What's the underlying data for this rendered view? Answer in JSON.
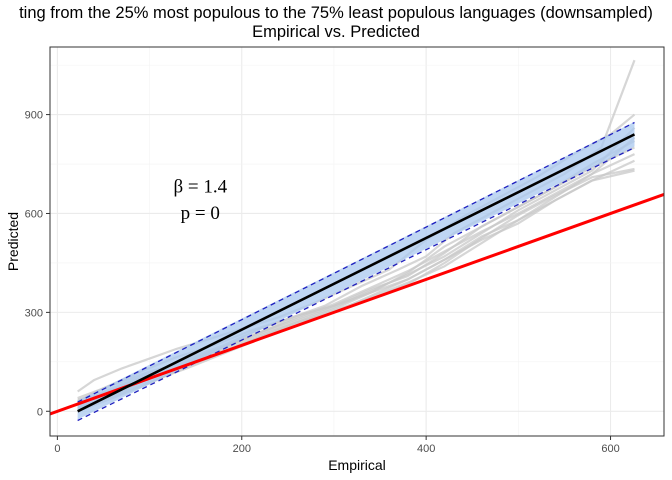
{
  "chart_data": {
    "type": "line",
    "title": "ting from the 25% most populous to the 75% least populous languages (downsampled)",
    "subtitle": "Empirical vs. Predicted",
    "xlabel": "Empirical",
    "ylabel": "Predicted",
    "xlim": [
      -8,
      658
    ],
    "ylim": [
      -75,
      1105
    ],
    "x_ticks": [
      0,
      200,
      400,
      600
    ],
    "y_ticks": [
      0,
      300,
      600,
      900
    ],
    "grid": true,
    "annotations": [
      "β = 1.4",
      "p = 0"
    ],
    "fit_line": {
      "name": "",
      "color": "#000000",
      "x": [
        22,
        626
      ],
      "y": [
        0,
        840
      ]
    },
    "confidence_band": {
      "fill": "#a9c8ef",
      "lower": [
        -25,
        803
      ],
      "upper": [
        32,
        878
      ]
    },
    "prediction_lines_dashed": {
      "color": "#1f1fbf",
      "lower": [
        -28,
        800
      ],
      "upper": [
        28,
        876
      ]
    },
    "identity_line": {
      "color": "#ff0000",
      "x": [
        -8,
        658
      ],
      "y": [
        -8,
        658
      ]
    },
    "series": [
      {
        "name": "",
        "x": [
          22,
          40,
          70,
          100,
          130,
          160,
          200,
          240,
          280,
          320,
          360,
          400,
          440,
          480,
          520,
          560,
          600,
          626
        ],
        "y": [
          60,
          95,
          130,
          160,
          190,
          215,
          250,
          285,
          330,
          380,
          430,
          520,
          590,
          650,
          710,
          780,
          840,
          900
        ]
      },
      {
        "name": "",
        "x": [
          22,
          50,
          90,
          130,
          170,
          210,
          250,
          290,
          330,
          370,
          400,
          430,
          470,
          510,
          550,
          590,
          626
        ],
        "y": [
          30,
          70,
          120,
          165,
          200,
          245,
          280,
          320,
          380,
          430,
          470,
          540,
          600,
          660,
          720,
          800,
          1065
        ]
      },
      {
        "name": "",
        "x": [
          22,
          60,
          100,
          140,
          180,
          220,
          260,
          300,
          340,
          380,
          420,
          460,
          500,
          540,
          580,
          626
        ],
        "y": [
          10,
          50,
          100,
          140,
          180,
          225,
          270,
          300,
          350,
          400,
          460,
          530,
          580,
          640,
          700,
          730
        ]
      },
      {
        "name": "",
        "x": [
          22,
          60,
          100,
          140,
          180,
          220,
          260,
          300,
          340,
          380,
          420,
          460,
          500,
          540,
          580,
          626
        ],
        "y": [
          20,
          65,
          110,
          160,
          200,
          250,
          290,
          320,
          370,
          410,
          480,
          560,
          620,
          680,
          750,
          820
        ]
      },
      {
        "name": "",
        "x": [
          22,
          60,
          100,
          140,
          180,
          220,
          260,
          300,
          340,
          380,
          420,
          460,
          500,
          540,
          580,
          626
        ],
        "y": [
          5,
          55,
          100,
          145,
          190,
          240,
          280,
          320,
          360,
          400,
          460,
          520,
          570,
          640,
          700,
          760
        ]
      },
      {
        "name": "",
        "x": [
          22,
          60,
          100,
          140,
          180,
          220,
          260,
          300,
          340,
          380,
          420,
          460,
          500,
          540,
          580,
          626
        ],
        "y": [
          40,
          80,
          120,
          150,
          185,
          230,
          270,
          310,
          360,
          420,
          500,
          560,
          620,
          680,
          740,
          800
        ]
      },
      {
        "name": "",
        "x": [
          22,
          60,
          100,
          140,
          180,
          220,
          260,
          300,
          340,
          380,
          420,
          460,
          500,
          540,
          580,
          626
        ],
        "y": [
          15,
          45,
          90,
          130,
          175,
          220,
          265,
          305,
          345,
          390,
          440,
          510,
          580,
          650,
          720,
          780
        ]
      },
      {
        "name": "",
        "x": [
          22,
          60,
          100,
          140,
          180,
          220,
          260,
          300,
          340,
          380,
          420,
          460,
          500,
          540,
          580,
          626
        ],
        "y": [
          25,
          70,
          115,
          155,
          195,
          235,
          275,
          315,
          365,
          415,
          470,
          540,
          610,
          670,
          730,
          860
        ]
      },
      {
        "name": "",
        "x": [
          22,
          60,
          100,
          140,
          180,
          220,
          260,
          300,
          340,
          380,
          420,
          460,
          500,
          540,
          580,
          626
        ],
        "y": [
          35,
          60,
          105,
          150,
          195,
          240,
          285,
          325,
          375,
          425,
          485,
          545,
          600,
          660,
          720,
          830
        ]
      },
      {
        "name": "",
        "x": [
          22,
          60,
          100,
          140,
          180,
          220,
          260,
          300,
          340,
          380,
          420,
          460,
          500,
          540,
          580,
          626
        ],
        "y": [
          0,
          40,
          85,
          135,
          180,
          225,
          260,
          300,
          340,
          385,
          450,
          525,
          595,
          655,
          710,
          735
        ]
      }
    ]
  }
}
